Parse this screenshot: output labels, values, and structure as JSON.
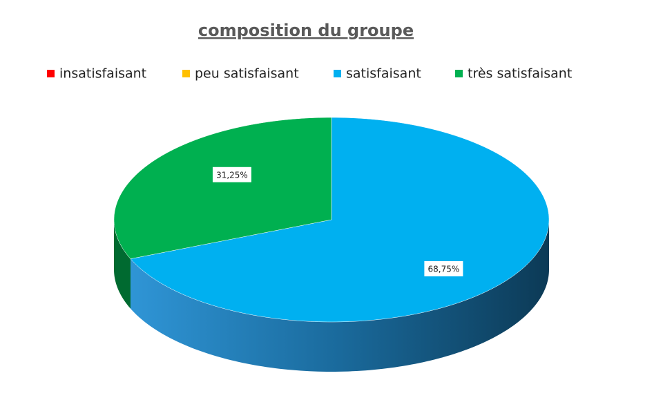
{
  "chart_data": {
    "type": "pie3d",
    "title": "composition du groupe",
    "categories": [
      "insatisfaisant",
      "peu satisfaisant",
      "satisfaisant",
      "très satisfaisant"
    ],
    "values": [
      0,
      0,
      68.75,
      31.25
    ],
    "value_labels": [
      null,
      null,
      "68,75%",
      "31,25%"
    ],
    "colors": [
      "#ff0000",
      "#ffc000",
      "#00b0f0",
      "#00b050"
    ],
    "legend": "top"
  }
}
